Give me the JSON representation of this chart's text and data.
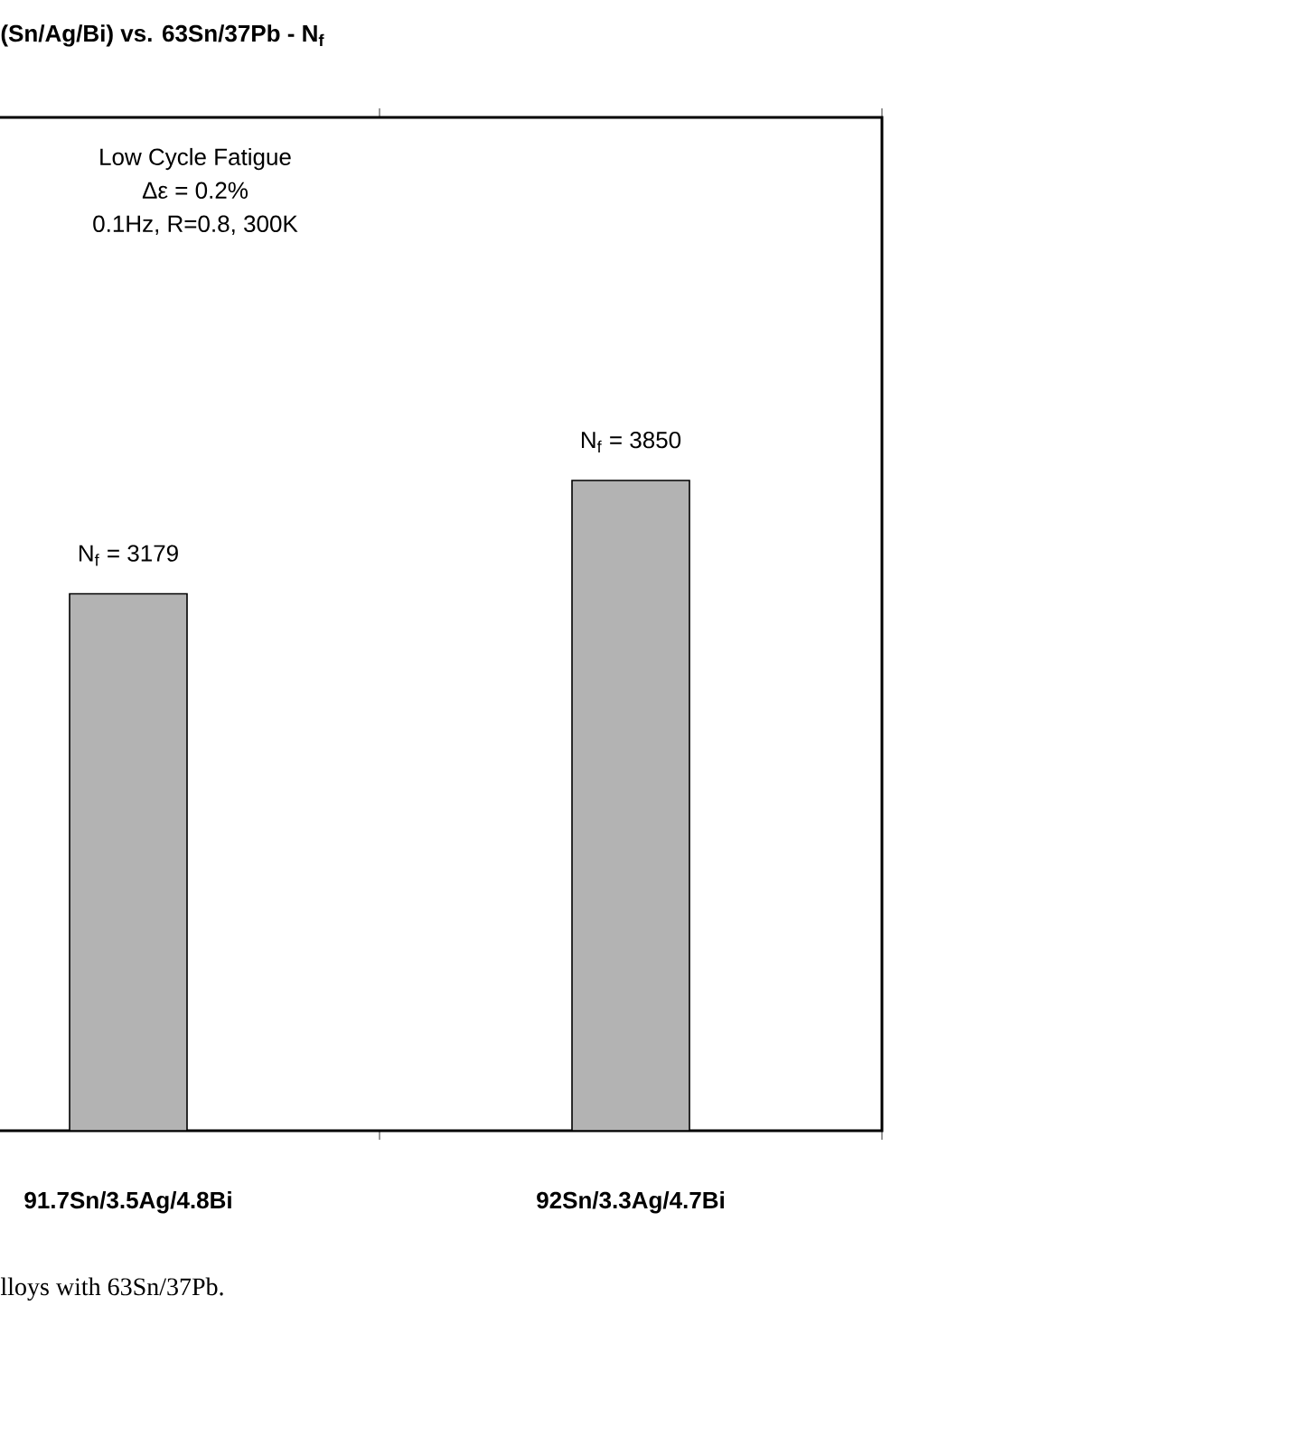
{
  "chart_data": {
    "type": "bar",
    "title": "(Sn/Ag/Bi) vs. 63Sn/37Pb - N$_{f}$",
    "categories": [
      "91.7Sn/3.5Ag/4.8Bi",
      "92Sn/3.3Ag/4.7Bi"
    ],
    "values": [
      3179,
      3850
    ],
    "color": "#b3b3b3",
    "ylim": [
      0,
      6000
    ],
    "value_labels": [
      "N$_{f}$ = 3179",
      "N$_{f}$ = 3850"
    ],
    "annotations": [
      "Low Cycle Fatigue",
      "Δε = 0.2%",
      "0.1Hz, R=0.8, 300K",
      "lloys with 63Sn/37Pb."
    ]
  }
}
